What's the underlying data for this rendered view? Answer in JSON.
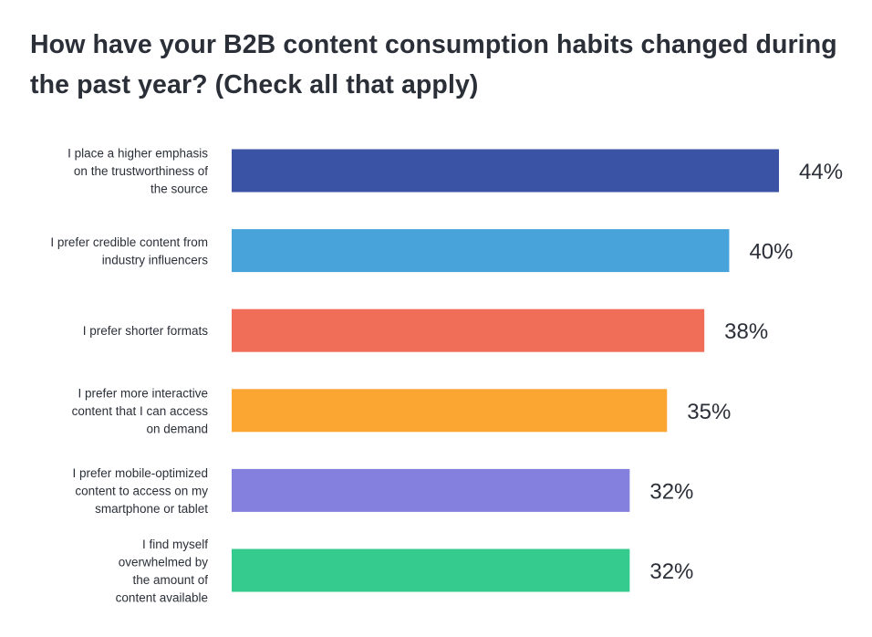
{
  "chart_data": {
    "type": "bar",
    "orientation": "horizontal",
    "title_lines": [
      "How have your B2B content consumption habits changed during",
      "the past year? (Check all that apply)"
    ],
    "categories": [
      [
        "I place a higher emphasis",
        "on the trustworthiness of",
        "the source"
      ],
      [
        "I prefer credible content from",
        "industry influencers"
      ],
      [
        "I prefer shorter formats"
      ],
      [
        "I prefer more interactive",
        "content that I can access",
        "on demand"
      ],
      [
        "I prefer mobile-optimized",
        "content to access on my",
        "smartphone or tablet"
      ],
      [
        "I find myself",
        "overwhelmed by",
        "the amount of",
        "content available"
      ]
    ],
    "values": [
      44,
      40,
      38,
      35,
      32,
      32
    ],
    "value_labels": [
      "44%",
      "40%",
      "38%",
      "35%",
      "32%",
      "32%"
    ],
    "colors": [
      "#3a53a4",
      "#47a3d9",
      "#f06e58",
      "#fba632",
      "#8480de",
      "#36cb8e"
    ],
    "unit": "%",
    "xlim": [
      0,
      44
    ],
    "grid": false,
    "legend": "none"
  }
}
